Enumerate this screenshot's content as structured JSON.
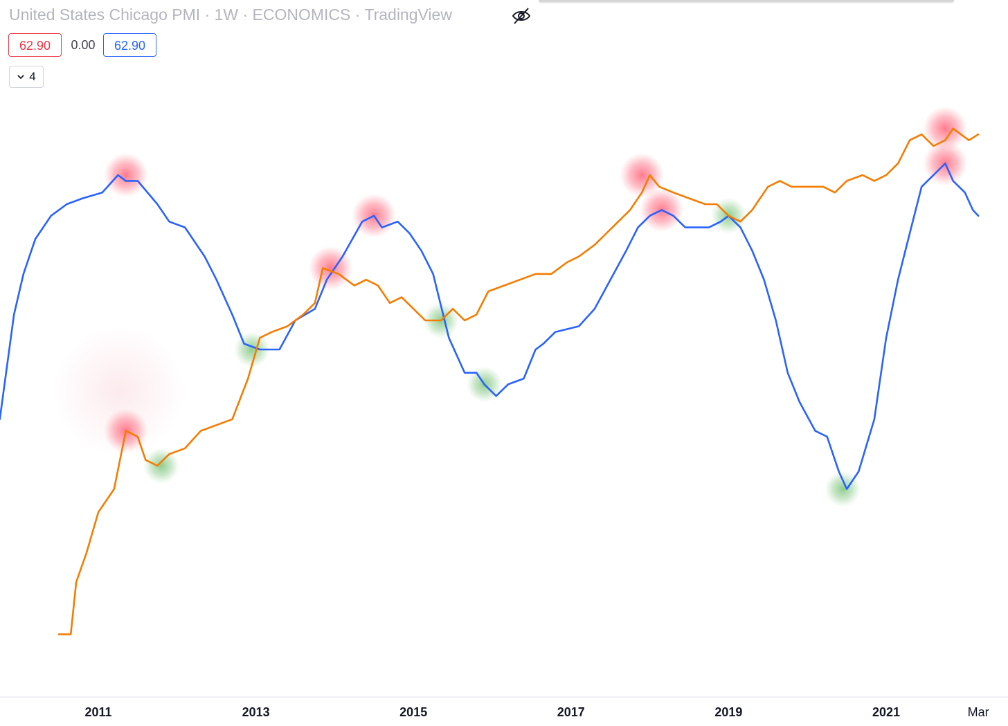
{
  "header": {
    "title": "United States Chicago PMI · 1W · ECONOMICS · TradingView",
    "values": [
      "62.90",
      "0.00",
      "62.90"
    ],
    "collapsed_count": "4"
  },
  "icons": {
    "visibility": "eye-off-icon",
    "collapse": "chevron-down-icon"
  },
  "colors": {
    "blue_line": "#2962ff",
    "orange_line": "#f57c00",
    "peak_marker": "#ff5a6e",
    "trough_marker": "#66bb6a",
    "value_red": "#f23645"
  },
  "chart_data": {
    "type": "line",
    "xlim": [
      2009.75,
      2022.25
    ],
    "x_ticks": [
      {
        "label": "2011",
        "x": 2011.0
      },
      {
        "label": "2013",
        "x": 2013.0
      },
      {
        "label": "2015",
        "x": 2015.0
      },
      {
        "label": "2017",
        "x": 2017.0
      },
      {
        "label": "2019",
        "x": 2019.0
      },
      {
        "label": "2021",
        "x": 2021.0
      },
      {
        "label": "Mar",
        "x": 2022.17
      }
    ],
    "y_scale_note": "unlabeled",
    "ylim": [
      0,
      100
    ],
    "series": [
      {
        "color": "#2962ff",
        "points": [
          [
            2009.75,
            38
          ],
          [
            2009.93,
            56
          ],
          [
            2010.05,
            63
          ],
          [
            2010.2,
            69
          ],
          [
            2010.4,
            73
          ],
          [
            2010.6,
            75
          ],
          [
            2010.8,
            76
          ],
          [
            2011.05,
            77
          ],
          [
            2011.25,
            80
          ],
          [
            2011.35,
            79
          ],
          [
            2011.5,
            79
          ],
          [
            2011.75,
            75
          ],
          [
            2011.9,
            72
          ],
          [
            2012.1,
            71
          ],
          [
            2012.35,
            66
          ],
          [
            2012.5,
            62
          ],
          [
            2012.7,
            56
          ],
          [
            2012.85,
            51
          ],
          [
            2013.05,
            50
          ],
          [
            2013.3,
            50
          ],
          [
            2013.5,
            55
          ],
          [
            2013.75,
            57
          ],
          [
            2013.9,
            62
          ],
          [
            2014.1,
            66
          ],
          [
            2014.35,
            72
          ],
          [
            2014.5,
            73
          ],
          [
            2014.6,
            71
          ],
          [
            2014.8,
            72
          ],
          [
            2014.95,
            70
          ],
          [
            2015.1,
            67
          ],
          [
            2015.25,
            63
          ],
          [
            2015.45,
            52
          ],
          [
            2015.65,
            46
          ],
          [
            2015.8,
            46
          ],
          [
            2015.9,
            44
          ],
          [
            2016.05,
            42
          ],
          [
            2016.2,
            44
          ],
          [
            2016.4,
            45
          ],
          [
            2016.55,
            50
          ],
          [
            2016.65,
            51
          ],
          [
            2016.8,
            53
          ],
          [
            2017.1,
            54
          ],
          [
            2017.3,
            57
          ],
          [
            2017.5,
            62
          ],
          [
            2017.7,
            67
          ],
          [
            2017.85,
            71
          ],
          [
            2018.0,
            73
          ],
          [
            2018.15,
            74
          ],
          [
            2018.3,
            73
          ],
          [
            2018.45,
            71
          ],
          [
            2018.6,
            71
          ],
          [
            2018.75,
            71
          ],
          [
            2018.9,
            72
          ],
          [
            2019.0,
            73
          ],
          [
            2019.15,
            71
          ],
          [
            2019.3,
            67
          ],
          [
            2019.45,
            62
          ],
          [
            2019.6,
            55
          ],
          [
            2019.75,
            46
          ],
          [
            2019.9,
            41
          ],
          [
            2020.1,
            36
          ],
          [
            2020.25,
            35
          ],
          [
            2020.4,
            29
          ],
          [
            2020.5,
            26
          ],
          [
            2020.65,
            29
          ],
          [
            2020.85,
            38
          ],
          [
            2021.0,
            52
          ],
          [
            2021.15,
            62
          ],
          [
            2021.3,
            70
          ],
          [
            2021.45,
            78
          ],
          [
            2021.6,
            80
          ],
          [
            2021.75,
            82
          ],
          [
            2021.85,
            79
          ],
          [
            2022.0,
            77
          ],
          [
            2022.1,
            74
          ],
          [
            2022.17,
            73
          ]
        ]
      },
      {
        "color": "#f57c00",
        "points": [
          [
            2010.5,
            1
          ],
          [
            2010.65,
            1
          ],
          [
            2010.72,
            10
          ],
          [
            2010.85,
            15
          ],
          [
            2011.0,
            22
          ],
          [
            2011.2,
            26
          ],
          [
            2011.35,
            36
          ],
          [
            2011.5,
            35
          ],
          [
            2011.6,
            31
          ],
          [
            2011.75,
            30
          ],
          [
            2011.9,
            32
          ],
          [
            2012.1,
            33
          ],
          [
            2012.3,
            36
          ],
          [
            2012.5,
            37
          ],
          [
            2012.7,
            38
          ],
          [
            2012.9,
            45
          ],
          [
            2013.05,
            52
          ],
          [
            2013.2,
            53
          ],
          [
            2013.4,
            54
          ],
          [
            2013.6,
            56
          ],
          [
            2013.75,
            58
          ],
          [
            2013.85,
            64
          ],
          [
            2014.05,
            63
          ],
          [
            2014.25,
            61
          ],
          [
            2014.4,
            62
          ],
          [
            2014.55,
            61
          ],
          [
            2014.7,
            58
          ],
          [
            2014.85,
            59
          ],
          [
            2015.0,
            57
          ],
          [
            2015.15,
            55
          ],
          [
            2015.35,
            55
          ],
          [
            2015.5,
            57
          ],
          [
            2015.65,
            55
          ],
          [
            2015.8,
            56
          ],
          [
            2015.95,
            60
          ],
          [
            2016.15,
            61
          ],
          [
            2016.35,
            62
          ],
          [
            2016.55,
            63
          ],
          [
            2016.75,
            63
          ],
          [
            2016.95,
            65
          ],
          [
            2017.1,
            66
          ],
          [
            2017.3,
            68
          ],
          [
            2017.45,
            70
          ],
          [
            2017.6,
            72
          ],
          [
            2017.75,
            74
          ],
          [
            2017.9,
            77
          ],
          [
            2018.0,
            80
          ],
          [
            2018.12,
            78
          ],
          [
            2018.3,
            77
          ],
          [
            2018.5,
            76
          ],
          [
            2018.7,
            75
          ],
          [
            2018.85,
            75
          ],
          [
            2019.0,
            73
          ],
          [
            2019.15,
            72
          ],
          [
            2019.3,
            74
          ],
          [
            2019.5,
            78
          ],
          [
            2019.65,
            79
          ],
          [
            2019.8,
            78
          ],
          [
            2020.0,
            78
          ],
          [
            2020.2,
            78
          ],
          [
            2020.35,
            77
          ],
          [
            2020.5,
            79
          ],
          [
            2020.7,
            80
          ],
          [
            2020.85,
            79
          ],
          [
            2021.0,
            80
          ],
          [
            2021.15,
            82
          ],
          [
            2021.3,
            86
          ],
          [
            2021.45,
            87
          ],
          [
            2021.6,
            85
          ],
          [
            2021.75,
            86
          ],
          [
            2021.85,
            88
          ],
          [
            2021.95,
            87
          ],
          [
            2022.05,
            86
          ],
          [
            2022.17,
            87
          ]
        ]
      }
    ],
    "markers": [
      {
        "series": 0,
        "x": 2011.35,
        "y": 80,
        "type": "peak"
      },
      {
        "series": 1,
        "x": 2011.35,
        "y": 36,
        "type": "peak"
      },
      {
        "series": 1,
        "x": 2011.8,
        "y": 30,
        "type": "trough"
      },
      {
        "series": 0,
        "x": 2012.95,
        "y": 50,
        "type": "trough"
      },
      {
        "series": 1,
        "x": 2013.95,
        "y": 64,
        "type": "peak"
      },
      {
        "series": 0,
        "x": 2014.5,
        "y": 73,
        "type": "peak"
      },
      {
        "series": 1,
        "x": 2015.35,
        "y": 55,
        "type": "trough"
      },
      {
        "series": 0,
        "x": 2015.9,
        "y": 44,
        "type": "trough"
      },
      {
        "series": 1,
        "x": 2017.9,
        "y": 80,
        "type": "peak"
      },
      {
        "series": 0,
        "x": 2018.15,
        "y": 74,
        "type": "peak"
      },
      {
        "series": 1,
        "x": 2019.0,
        "y": 73,
        "type": "trough"
      },
      {
        "series": 0,
        "x": 2020.45,
        "y": 26,
        "type": "trough"
      },
      {
        "series": 1,
        "x": 2021.75,
        "y": 88,
        "type": "peak"
      },
      {
        "series": 0,
        "x": 2021.75,
        "y": 82,
        "type": "peak"
      }
    ]
  }
}
